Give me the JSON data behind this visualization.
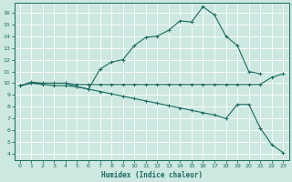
{
  "xlabel": "Humidex (Indice chaleur)",
  "ylabel": "",
  "bg_color": "#cce8e0",
  "line_color": "#1a6b60",
  "grid_color": "#b0d8d0",
  "xlim": [
    -0.5,
    23.5
  ],
  "ylim": [
    3.5,
    16.8
  ],
  "xticks": [
    0,
    1,
    2,
    3,
    4,
    5,
    6,
    7,
    8,
    9,
    10,
    11,
    12,
    13,
    14,
    15,
    16,
    17,
    18,
    19,
    20,
    21,
    22,
    23
  ],
  "yticks": [
    4,
    5,
    6,
    7,
    8,
    9,
    10,
    11,
    12,
    13,
    14,
    15,
    16
  ],
  "line1_x": [
    0,
    1,
    2,
    3,
    4,
    5,
    6,
    7,
    8,
    9,
    10,
    11,
    12,
    13,
    14,
    15,
    16,
    17,
    18,
    19,
    20,
    21
  ],
  "line1_y": [
    9.8,
    10.1,
    10.0,
    10.0,
    10.0,
    9.7,
    9.5,
    11.2,
    11.8,
    12.0,
    13.2,
    13.9,
    14.0,
    14.5,
    15.3,
    15.2,
    16.5,
    15.8,
    14.0,
    13.2,
    11.0,
    10.8
  ],
  "line2_x": [
    0,
    1,
    2,
    3,
    4,
    5,
    6,
    7,
    8,
    9,
    10,
    11,
    12,
    13,
    14,
    15,
    16,
    17,
    18,
    19,
    20,
    21,
    22,
    23
  ],
  "line2_y": [
    9.8,
    10.0,
    10.0,
    10.0,
    10.0,
    9.9,
    9.9,
    9.9,
    9.9,
    9.9,
    9.9,
    9.9,
    9.9,
    9.9,
    9.9,
    9.9,
    9.9,
    9.9,
    9.9,
    9.9,
    9.9,
    9.9,
    10.5,
    10.8
  ],
  "line3_x": [
    0,
    1,
    2,
    3,
    4,
    5,
    6,
    7,
    8,
    9,
    10,
    11,
    12,
    13,
    14,
    15,
    16,
    17,
    18,
    19,
    20,
    21,
    22,
    23
  ],
  "line3_y": [
    9.8,
    10.0,
    9.9,
    9.8,
    9.8,
    9.7,
    9.5,
    9.3,
    9.1,
    8.9,
    8.7,
    8.5,
    8.3,
    8.1,
    7.9,
    7.7,
    7.5,
    7.3,
    7.0,
    8.2,
    8.2,
    6.2,
    4.8,
    4.1
  ]
}
